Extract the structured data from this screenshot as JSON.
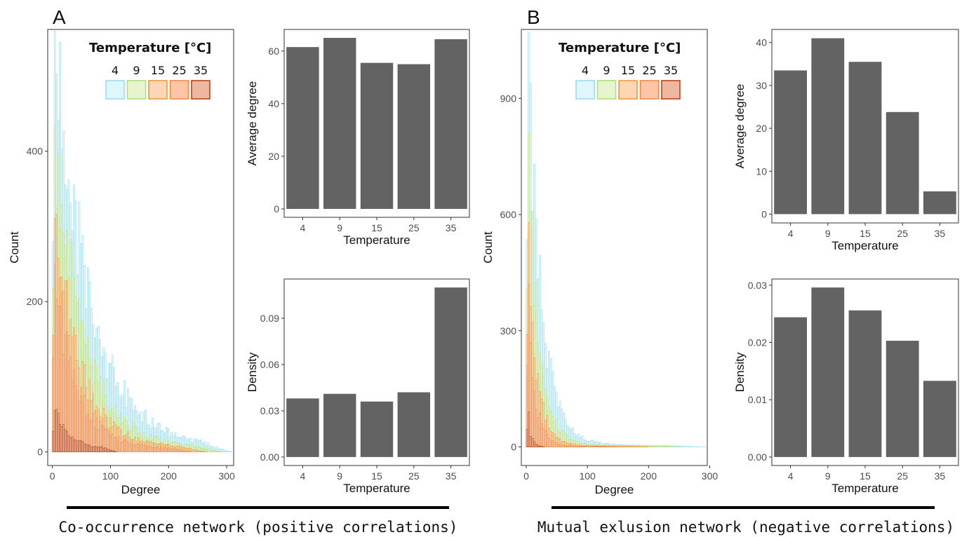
{
  "panels": {
    "A": {
      "letter": "A",
      "caption": "Co-occurrence network (positive correlations)",
      "legend": {
        "title": "Temperature [°C]",
        "labels": [
          "4",
          "9",
          "15",
          "25",
          "35"
        ],
        "fills": [
          "#dff6fb",
          "#e6f5d0",
          "#fdd7b5",
          "#fcc5a8",
          "#eeb8a0"
        ],
        "strokes": [
          "#9fdcf2",
          "#b5de7a",
          "#f29a3c",
          "#ef8a4a",
          "#b5451b"
        ]
      }
    },
    "B": {
      "letter": "B",
      "caption": "Mutual exlusion network (negative correlations)",
      "legend": {
        "title": "Temperature [°C]",
        "labels": [
          "4",
          "9",
          "15",
          "25",
          "35"
        ],
        "fills": [
          "#dff6fb",
          "#e6f5d0",
          "#fdd7b5",
          "#fcc5a8",
          "#eeb8a0"
        ],
        "strokes": [
          "#9fdcf2",
          "#b5de7a",
          "#f29a3c",
          "#ef8a4a",
          "#b5451b"
        ]
      }
    }
  },
  "chart_data": [
    {
      "id": "A-hist",
      "type": "bar",
      "subtype": "histogram",
      "xlabel": "Degree",
      "ylabel": "Count",
      "xlim": [
        -8,
        312
      ],
      "ylim": [
        -18,
        562
      ],
      "xticks": [
        0,
        100,
        200,
        300
      ],
      "yticks": [
        0,
        200,
        400
      ],
      "series": [
        {
          "name": "4",
          "peak": 560,
          "decay": 55,
          "tail": 40,
          "cutoff": 308,
          "color": "#9fdcf2",
          "fill": "#dff6fb"
        },
        {
          "name": "9",
          "peak": 435,
          "decay": 45,
          "tail": 28,
          "cutoff": 290,
          "color": "#b5de7a",
          "fill": "#e6f5d0"
        },
        {
          "name": "15",
          "peak": 310,
          "decay": 40,
          "tail": 22,
          "cutoff": 265,
          "color": "#f29a3c",
          "fill": "#fdd7b5"
        },
        {
          "name": "25",
          "peak": 250,
          "decay": 35,
          "tail": 15,
          "cutoff": 240,
          "color": "#ef8a4a",
          "fill": "#fcc5a8"
        },
        {
          "name": "35",
          "peak": 55,
          "decay": 30,
          "tail": 4,
          "cutoff": 110,
          "color": "#b5451b",
          "fill": "#eeb8a0"
        }
      ]
    },
    {
      "id": "A-avgdeg",
      "type": "bar",
      "categories": [
        "4",
        "9",
        "15",
        "25",
        "35"
      ],
      "values": [
        61.5,
        65,
        55.5,
        55,
        64.5
      ],
      "xlabel": "Temperature",
      "ylabel": "Average degree",
      "ylim": [
        -3.2,
        68.2
      ],
      "yticks": [
        0,
        20,
        40,
        60
      ],
      "yformat": 0
    },
    {
      "id": "A-density",
      "type": "bar",
      "categories": [
        "4",
        "9",
        "15",
        "25",
        "35"
      ],
      "values": [
        0.038,
        0.041,
        0.036,
        0.042,
        0.11
      ],
      "xlabel": "Temperature",
      "ylabel": "Density",
      "ylim": [
        -0.0055,
        0.1155
      ],
      "yticks": [
        0.0,
        0.03,
        0.06,
        0.09
      ],
      "yformat": 2
    },
    {
      "id": "B-hist",
      "type": "bar",
      "subtype": "histogram",
      "xlabel": "Degree",
      "ylabel": "Count",
      "xlim": [
        -8,
        296
      ],
      "ylim": [
        -48,
        1078
      ],
      "xticks": [
        0,
        100,
        200,
        300
      ],
      "yticks": [
        0,
        300,
        600,
        900
      ],
      "series": [
        {
          "name": "4",
          "peak": 1070,
          "decay": 22,
          "tail": 12,
          "cutoff": 292,
          "color": "#9fdcf2",
          "fill": "#dff6fb"
        },
        {
          "name": "9",
          "peak": 810,
          "decay": 18,
          "tail": 8,
          "cutoff": 250,
          "color": "#b5de7a",
          "fill": "#e6f5d0"
        },
        {
          "name": "15",
          "peak": 580,
          "decay": 15,
          "tail": 5,
          "cutoff": 200,
          "color": "#f29a3c",
          "fill": "#fdd7b5"
        },
        {
          "name": "25",
          "peak": 420,
          "decay": 12,
          "tail": 3,
          "cutoff": 150,
          "color": "#ef8a4a",
          "fill": "#fcc5a8"
        },
        {
          "name": "35",
          "peak": 90,
          "decay": 6,
          "tail": 0,
          "cutoff": 30,
          "color": "#b5451b",
          "fill": "#eeb8a0"
        }
      ]
    },
    {
      "id": "B-avgdeg",
      "type": "bar",
      "categories": [
        "4",
        "9",
        "15",
        "25",
        "35"
      ],
      "values": [
        33.5,
        41,
        35.5,
        23.8,
        5.3
      ],
      "xlabel": "Temperature",
      "ylabel": "Average degree",
      "ylim": [
        -2.05,
        43.05
      ],
      "yticks": [
        0,
        10,
        20,
        30,
        40
      ],
      "yformat": 0
    },
    {
      "id": "B-density",
      "type": "bar",
      "categories": [
        "4",
        "9",
        "15",
        "25",
        "35"
      ],
      "values": [
        0.0244,
        0.0296,
        0.0256,
        0.0203,
        0.0133
      ],
      "xlabel": "Temperature",
      "ylabel": "Density",
      "ylim": [
        -0.00148,
        0.03108
      ],
      "yticks": [
        0.0,
        0.01,
        0.02,
        0.03
      ],
      "yformat": 2
    }
  ]
}
